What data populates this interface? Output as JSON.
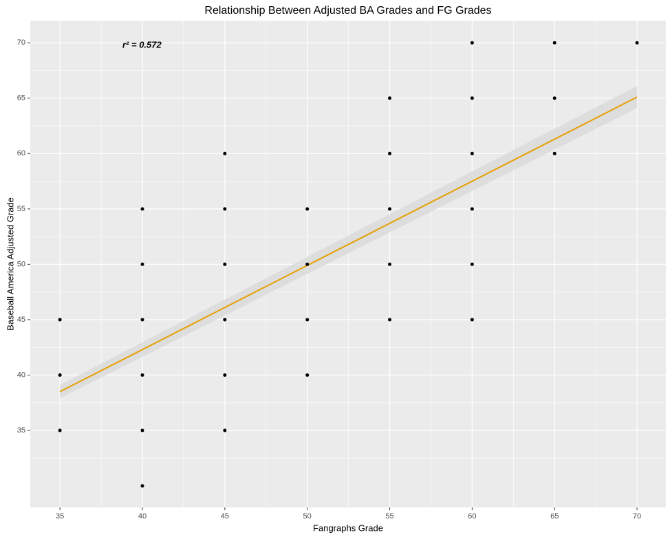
{
  "chart_data": {
    "type": "scatter",
    "title": "Relationship Between Adjusted BA Grades and FG Grades",
    "x_label": "Fangraphs Grade",
    "y_label": "Baseball America Adjusted Grade",
    "annotation": "r² = 0.572",
    "points": {
      "color": "#000000",
      "x": [
        35,
        35,
        35,
        40,
        40,
        40,
        40,
        40,
        40,
        45,
        45,
        45,
        45,
        45,
        45,
        50,
        50,
        50,
        50,
        55,
        55,
        55,
        55,
        55,
        60,
        60,
        60,
        60,
        60,
        60,
        65,
        65,
        65,
        70
      ],
      "y": [
        45,
        40,
        35,
        55,
        50,
        45,
        40,
        35,
        30,
        60,
        55,
        50,
        45,
        40,
        35,
        55,
        50,
        45,
        40,
        65,
        60,
        55,
        50,
        45,
        70,
        65,
        60,
        55,
        50,
        45,
        70,
        65,
        60,
        70
      ]
    },
    "fit": {
      "color": "#e69f00",
      "band_color": "#d9d9d9",
      "x": [
        35,
        70
      ],
      "y": [
        38.5,
        65.1
      ],
      "lower": [
        37.9,
        64.1
      ],
      "upper": [
        39.1,
        66.1
      ]
    },
    "xlim": [
      33.2,
      71.75
    ],
    "ylim": [
      28.05,
      72
    ],
    "xticks": [
      35,
      40,
      45,
      50,
      55,
      60,
      65,
      70
    ],
    "yticks": [
      35,
      40,
      45,
      50,
      55,
      60,
      65,
      70
    ],
    "grid": true
  }
}
